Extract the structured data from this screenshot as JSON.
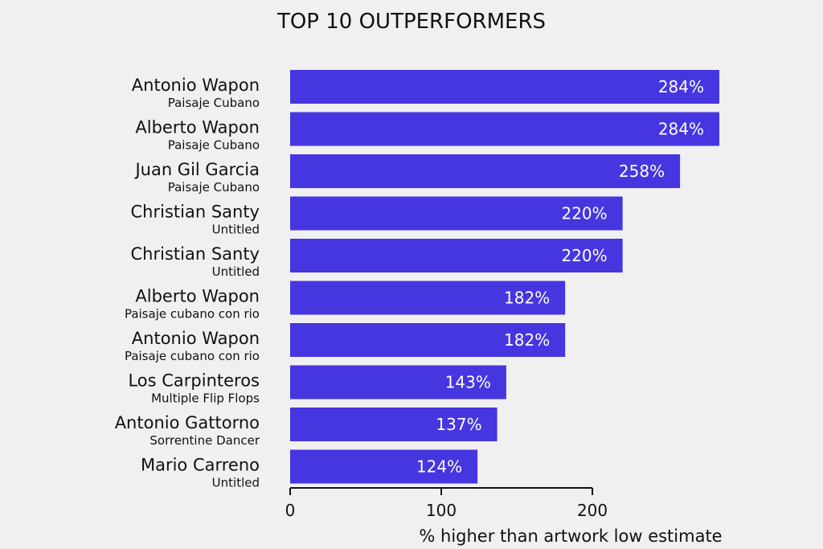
{
  "chart_data": {
    "type": "bar",
    "orientation": "horizontal",
    "title": "TOP 10 OUTPERFORMERS",
    "xlabel": "% higher than artwork low estimate",
    "ylabel": "",
    "xlim": [
      0,
      284
    ],
    "xticks": [
      0,
      100,
      200
    ],
    "grid": false,
    "bar_color": "#4636e0",
    "label_color": "#ffffff",
    "background": "#f0f0f0",
    "bars": [
      {
        "artist": "Antonio Wapon",
        "work": "Paisaje Cubano",
        "value": 284,
        "label": "284%"
      },
      {
        "artist": "Alberto Wapon",
        "work": "Paisaje Cubano",
        "value": 284,
        "label": "284%"
      },
      {
        "artist": "Juan Gil Garcia",
        "work": "Paisaje Cubano",
        "value": 258,
        "label": "258%"
      },
      {
        "artist": "Christian Santy",
        "work": "Untitled",
        "value": 220,
        "label": "220%"
      },
      {
        "artist": "Christian Santy",
        "work": "Untitled",
        "value": 220,
        "label": "220%"
      },
      {
        "artist": "Alberto Wapon",
        "work": "Paisaje cubano con rio",
        "value": 182,
        "label": "182%"
      },
      {
        "artist": "Antonio Wapon",
        "work": "Paisaje cubano con rio",
        "value": 182,
        "label": "182%"
      },
      {
        "artist": "Los Carpinteros",
        "work": "Multiple Flip Flops",
        "value": 143,
        "label": "143%"
      },
      {
        "artist": "Antonio Gattorno",
        "work": "Sorrentine Dancer",
        "value": 137,
        "label": "137%"
      },
      {
        "artist": "Mario Carreno",
        "work": "Untitled",
        "value": 124,
        "label": "124%"
      }
    ]
  }
}
